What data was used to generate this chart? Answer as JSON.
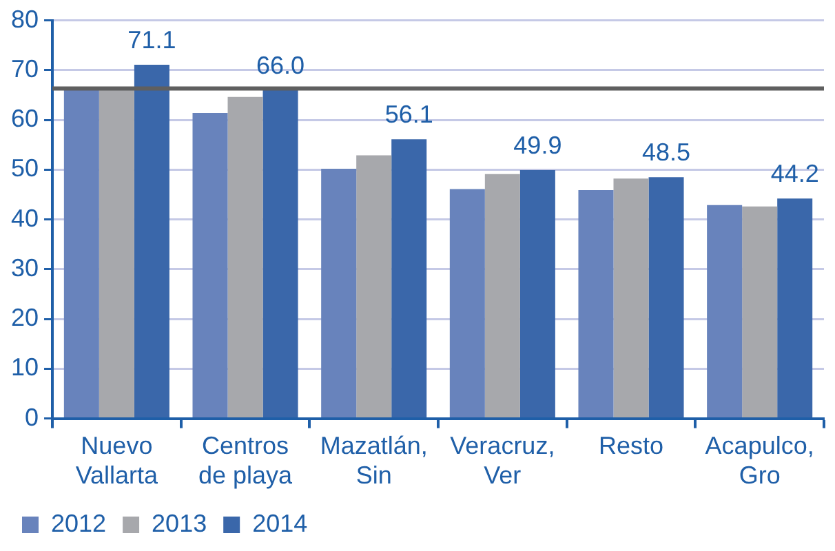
{
  "chart_data": {
    "type": "bar",
    "categories": [
      "Nuevo Vallarta",
      "Centros de playa",
      "Mazatlán, Sin",
      "Veracruz, Ver",
      "Resto",
      "Acapulco, Gro"
    ],
    "series": [
      {
        "name": "2012",
        "color": "#6883bc",
        "values": [
          66.0,
          61.4,
          50.2,
          46.1,
          45.9,
          42.9
        ]
      },
      {
        "name": "2013",
        "color": "#a7a8ac",
        "values": [
          66.0,
          64.6,
          52.9,
          49.1,
          48.2,
          42.6
        ]
      },
      {
        "name": "2014",
        "color": "#3a67aa",
        "values": [
          71.1,
          66.0,
          56.1,
          49.9,
          48.5,
          44.2
        ],
        "value_labels": [
          "71.1",
          "66.0",
          "56.1",
          "49.9",
          "48.5",
          "44.2"
        ]
      }
    ],
    "ylim": [
      0,
      80
    ],
    "yticks": [
      0,
      10,
      20,
      30,
      40,
      50,
      60,
      70,
      80
    ],
    "grid": "y",
    "legend": "bottom left",
    "ref_lines": [
      {
        "axis": "y",
        "value": 66.3,
        "color": "#5f5f5f"
      }
    ]
  }
}
